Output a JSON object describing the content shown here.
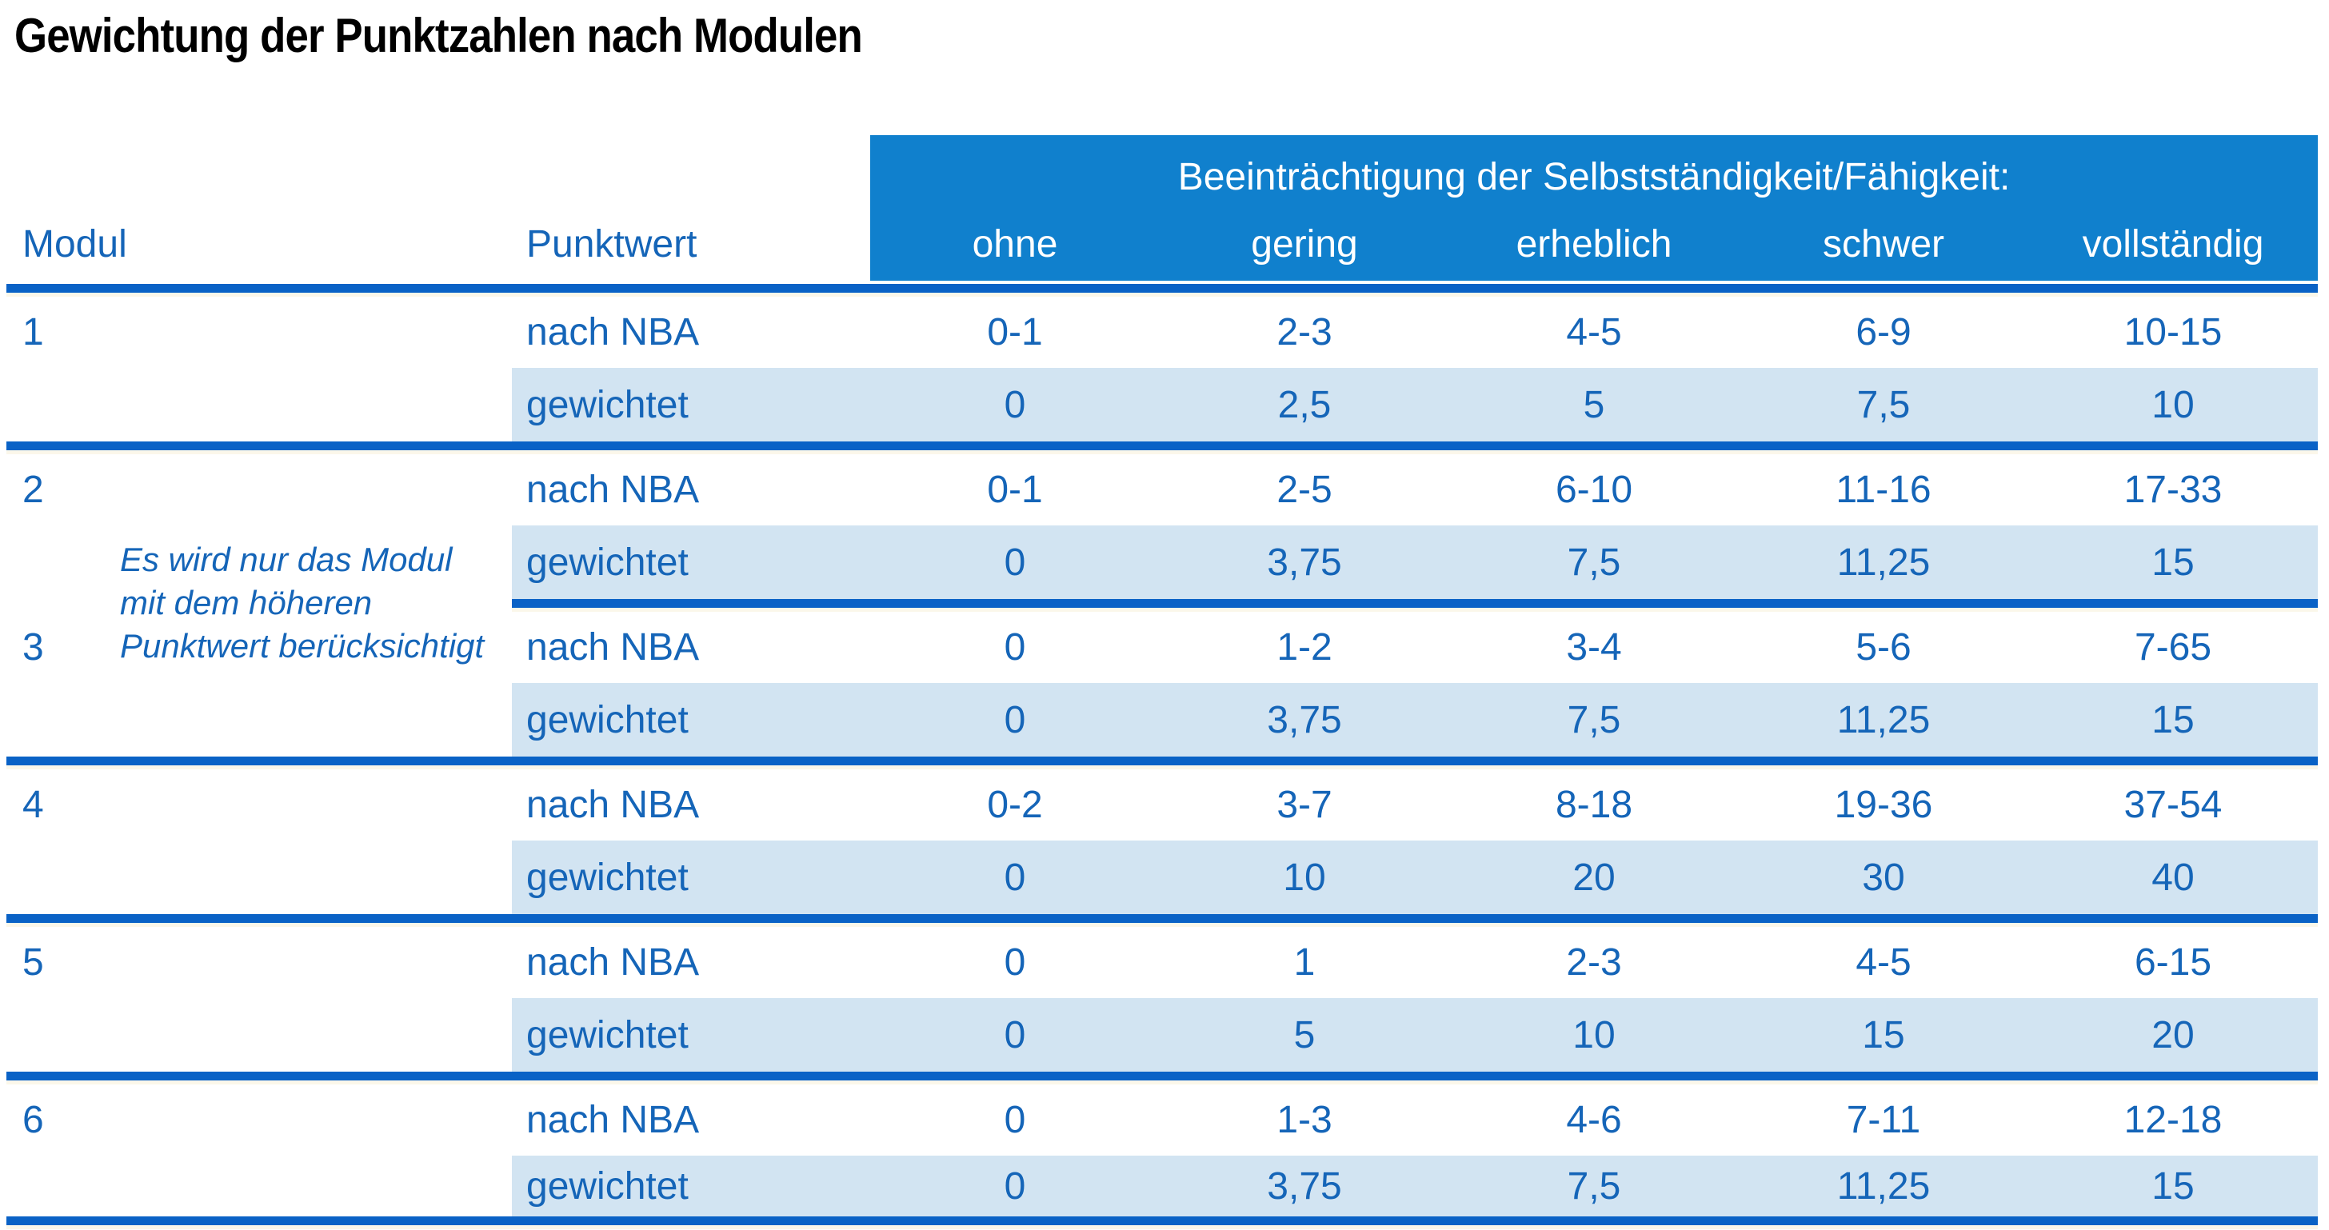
{
  "title": "Gewichtung der Punktzahlen nach Modulen",
  "table": {
    "modul_header": "Modul",
    "punktwert_header": "Punktwert",
    "impairment_header": "Beeinträchtigung der Selbstständigkeit/Fähigkeit:",
    "severity_levels": [
      "ohne",
      "gering",
      "erheblich",
      "schwer",
      "vollständig"
    ],
    "row_labels": {
      "nba": "nach NBA",
      "weighted": "gewichtet"
    },
    "note": "Es wird nur das Modul mit dem höheren Punktwert berücksichtigt",
    "note_lines": [
      "Es wird nur das Modul",
      "mit dem höheren",
      "Punktwert berücksichtigt"
    ],
    "modules": [
      {
        "id": "1",
        "nba": [
          "0-1",
          "2-3",
          "4-5",
          "6-9",
          "10-15"
        ],
        "weighted": [
          "0",
          "2,5",
          "5",
          "7,5",
          "10"
        ]
      },
      {
        "id": "2",
        "nba": [
          "0-1",
          "2-5",
          "6-10",
          "11-16",
          "17-33"
        ],
        "weighted": [
          "0",
          "3,75",
          "7,5",
          "11,25",
          "15"
        ]
      },
      {
        "id": "3",
        "nba": [
          "0",
          "1-2",
          "3-4",
          "5-6",
          "7-65"
        ],
        "weighted": [
          "0",
          "3,75",
          "7,5",
          "11,25",
          "15"
        ]
      },
      {
        "id": "4",
        "nba": [
          "0-2",
          "3-7",
          "8-18",
          "19-36",
          "37-54"
        ],
        "weighted": [
          "0",
          "10",
          "20",
          "30",
          "40"
        ]
      },
      {
        "id": "5",
        "nba": [
          "0",
          "1",
          "2-3",
          "4-5",
          "6-15"
        ],
        "weighted": [
          "0",
          "5",
          "10",
          "15",
          "20"
        ]
      },
      {
        "id": "6",
        "nba": [
          "0",
          "1-3",
          "4-6",
          "7-11",
          "12-18"
        ],
        "weighted": [
          "0",
          "3,75",
          "7,5",
          "11,25",
          "15"
        ]
      }
    ]
  },
  "colors": {
    "header_blue": "#1080cd",
    "separator_line_blue": "#0a62c6",
    "weighted_row_light_blue": "#d2e4f2",
    "text_blue": "#1565b8",
    "title_black": "#000000"
  }
}
